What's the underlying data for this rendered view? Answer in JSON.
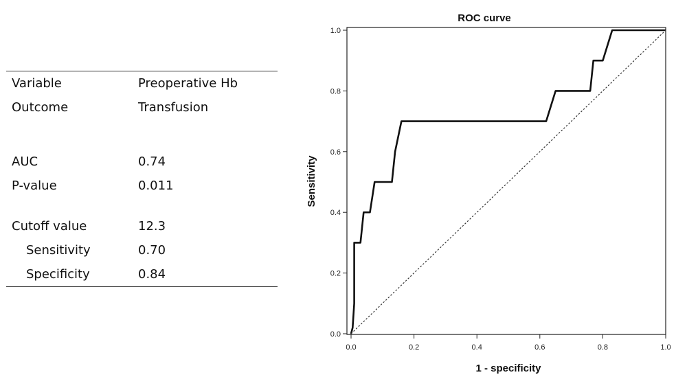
{
  "table": {
    "variable": {
      "label": "Variable",
      "value": "Preoperative Hb"
    },
    "outcome": {
      "label": "Outcome",
      "value": "Transfusion"
    },
    "auc": {
      "label": "AUC",
      "value": "0.74"
    },
    "pvalue": {
      "label": "P-value",
      "value": "0.011"
    },
    "cutoff": {
      "label": "Cutoff value",
      "value": "12.3"
    },
    "sensitivity": {
      "label": "Sensitivity",
      "value": "0.70"
    },
    "specificity": {
      "label": "Specificity",
      "value": "0.84"
    }
  },
  "chart_data": {
    "type": "line",
    "title": "ROC curve",
    "xlabel": "1 - specificity",
    "ylabel": "Sensitivity",
    "xlim": [
      0,
      1
    ],
    "ylim": [
      0,
      1
    ],
    "xticks": [
      "0.0",
      "0.2",
      "0.4",
      "0.6",
      "0.8",
      "1.0"
    ],
    "yticks": [
      "0.0",
      "0.2",
      "0.4",
      "0.6",
      "0.8",
      "1.0"
    ],
    "grid": false,
    "series": [
      {
        "style": "solid",
        "x": [
          0,
          0.005,
          0.01,
          0.01,
          0.03,
          0.04,
          0.06,
          0.075,
          0.13,
          0.14,
          0.16,
          0.62,
          0.65,
          0.76,
          0.77,
          0.8,
          0.83,
          1.0
        ],
        "y": [
          0,
          0.02,
          0.1,
          0.3,
          0.3,
          0.4,
          0.4,
          0.5,
          0.5,
          0.6,
          0.7,
          0.7,
          0.8,
          0.8,
          0.9,
          0.9,
          1.0,
          1.0
        ]
      },
      {
        "style": "dotted",
        "x": [
          0,
          1
        ],
        "y": [
          0,
          1
        ]
      }
    ],
    "colors": {
      "curve": "#111111",
      "reference": "#333333"
    }
  }
}
